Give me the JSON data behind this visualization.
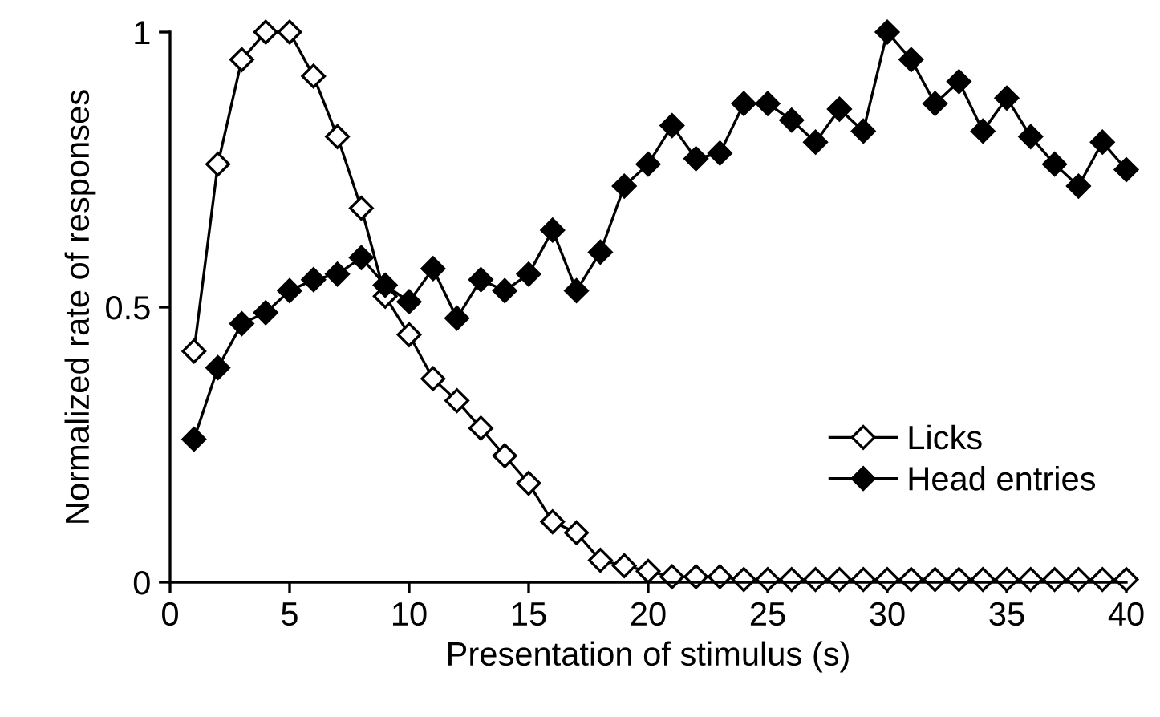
{
  "chart_data": {
    "type": "line",
    "xlabel": "Presentation of stimulus (s)",
    "ylabel": "Normalized rate of responses",
    "x": [
      1,
      2,
      3,
      4,
      5,
      6,
      7,
      8,
      9,
      10,
      11,
      12,
      13,
      14,
      15,
      16,
      17,
      18,
      19,
      20,
      21,
      22,
      23,
      24,
      25,
      26,
      27,
      28,
      29,
      30,
      31,
      32,
      33,
      34,
      35,
      36,
      37,
      38,
      39,
      40
    ],
    "series": [
      {
        "name": "Licks",
        "color": "#ffffff",
        "values": [
          0.42,
          0.76,
          0.95,
          1.0,
          1.0,
          0.92,
          0.81,
          0.68,
          0.52,
          0.45,
          0.37,
          0.33,
          0.28,
          0.23,
          0.18,
          0.11,
          0.09,
          0.04,
          0.03,
          0.02,
          0.01,
          0.01,
          0.01,
          0.005,
          0.005,
          0.005,
          0.005,
          0.005,
          0.005,
          0.005,
          0.005,
          0.005,
          0.005,
          0.005,
          0.005,
          0.005,
          0.005,
          0.005,
          0.005,
          0.005
        ]
      },
      {
        "name": "Head entries",
        "color": "#000000",
        "values": [
          0.26,
          0.39,
          0.47,
          0.49,
          0.53,
          0.55,
          0.56,
          0.59,
          0.54,
          0.51,
          0.57,
          0.48,
          0.55,
          0.53,
          0.56,
          0.64,
          0.53,
          0.6,
          0.72,
          0.76,
          0.83,
          0.77,
          0.78,
          0.87,
          0.87,
          0.84,
          0.8,
          0.86,
          0.82,
          1.0,
          0.95,
          0.87,
          0.91,
          0.82,
          0.88,
          0.81,
          0.76,
          0.72,
          0.8,
          0.75
        ]
      }
    ],
    "xlim": [
      0,
      40
    ],
    "xticks": [
      0,
      5,
      10,
      15,
      20,
      25,
      30,
      35,
      40
    ],
    "ylim": [
      0,
      1
    ],
    "yticks": [
      0,
      0.5,
      1
    ],
    "marker": "diamond",
    "line_style": "solid",
    "grid": false,
    "legend": "bottom right"
  }
}
